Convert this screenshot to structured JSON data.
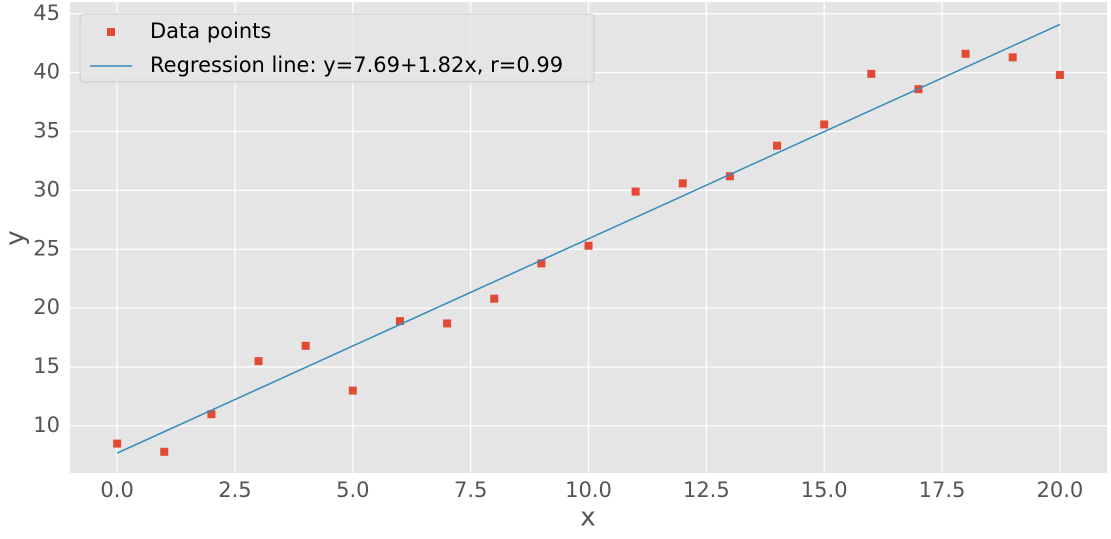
{
  "chart_data": {
    "type": "scatter",
    "xlabel": "x",
    "ylabel": "y",
    "xlim": [
      -1,
      21
    ],
    "ylim": [
      6,
      46
    ],
    "xticks": [
      {
        "value": 0,
        "label": "0.0"
      },
      {
        "value": 2.5,
        "label": "2.5"
      },
      {
        "value": 5,
        "label": "5.0"
      },
      {
        "value": 7.5,
        "label": "7.5"
      },
      {
        "value": 10,
        "label": "10.0"
      },
      {
        "value": 12.5,
        "label": "12.5"
      },
      {
        "value": 15,
        "label": "15.0"
      },
      {
        "value": 17.5,
        "label": "17.5"
      },
      {
        "value": 20,
        "label": "20.0"
      }
    ],
    "yticks": [
      10,
      15,
      20,
      25,
      30,
      35,
      40,
      45
    ],
    "grid": true,
    "legend": "upper left",
    "series": [
      {
        "name": "Data points",
        "type": "scatter",
        "color": "#E24A33",
        "x": [
          0,
          1,
          2,
          3,
          4,
          5,
          6,
          7,
          8,
          9,
          10,
          11,
          12,
          13,
          14,
          15,
          16,
          17,
          18,
          19,
          20
        ],
        "values": [
          8.5,
          7.8,
          11.0,
          15.5,
          16.8,
          13.0,
          18.9,
          18.7,
          20.8,
          23.8,
          25.3,
          29.9,
          30.6,
          31.2,
          33.8,
          35.6,
          39.9,
          38.6,
          41.6,
          41.3,
          39.8
        ]
      },
      {
        "name": "Regression line: y=7.69+1.82x, r=0.99",
        "type": "line",
        "color": "#348ABD",
        "x": [
          0,
          20
        ],
        "values": [
          7.69,
          44.09
        ]
      }
    ]
  }
}
